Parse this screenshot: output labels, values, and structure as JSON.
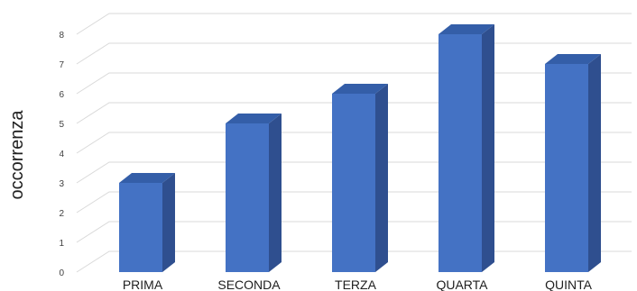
{
  "chart_data": {
    "type": "bar",
    "title": "",
    "xlabel": "",
    "ylabel": "occorrenza",
    "categories": [
      "PRIMA",
      "SECONDA",
      "TERZA",
      "QUARTA",
      "QUINTA"
    ],
    "values": [
      3,
      5,
      6,
      8,
      7
    ],
    "ylim": [
      0,
      8
    ],
    "yticks": [
      "0",
      "1",
      "2",
      "3",
      "4",
      "5",
      "6",
      "7",
      "8"
    ],
    "grid": true,
    "legend": "none",
    "style": "3d",
    "colors": {
      "bar_front": "#4472c4",
      "bar_side": "#2f4f8f",
      "bar_top": "#345ea8",
      "grid": "#d9d9d9"
    }
  }
}
